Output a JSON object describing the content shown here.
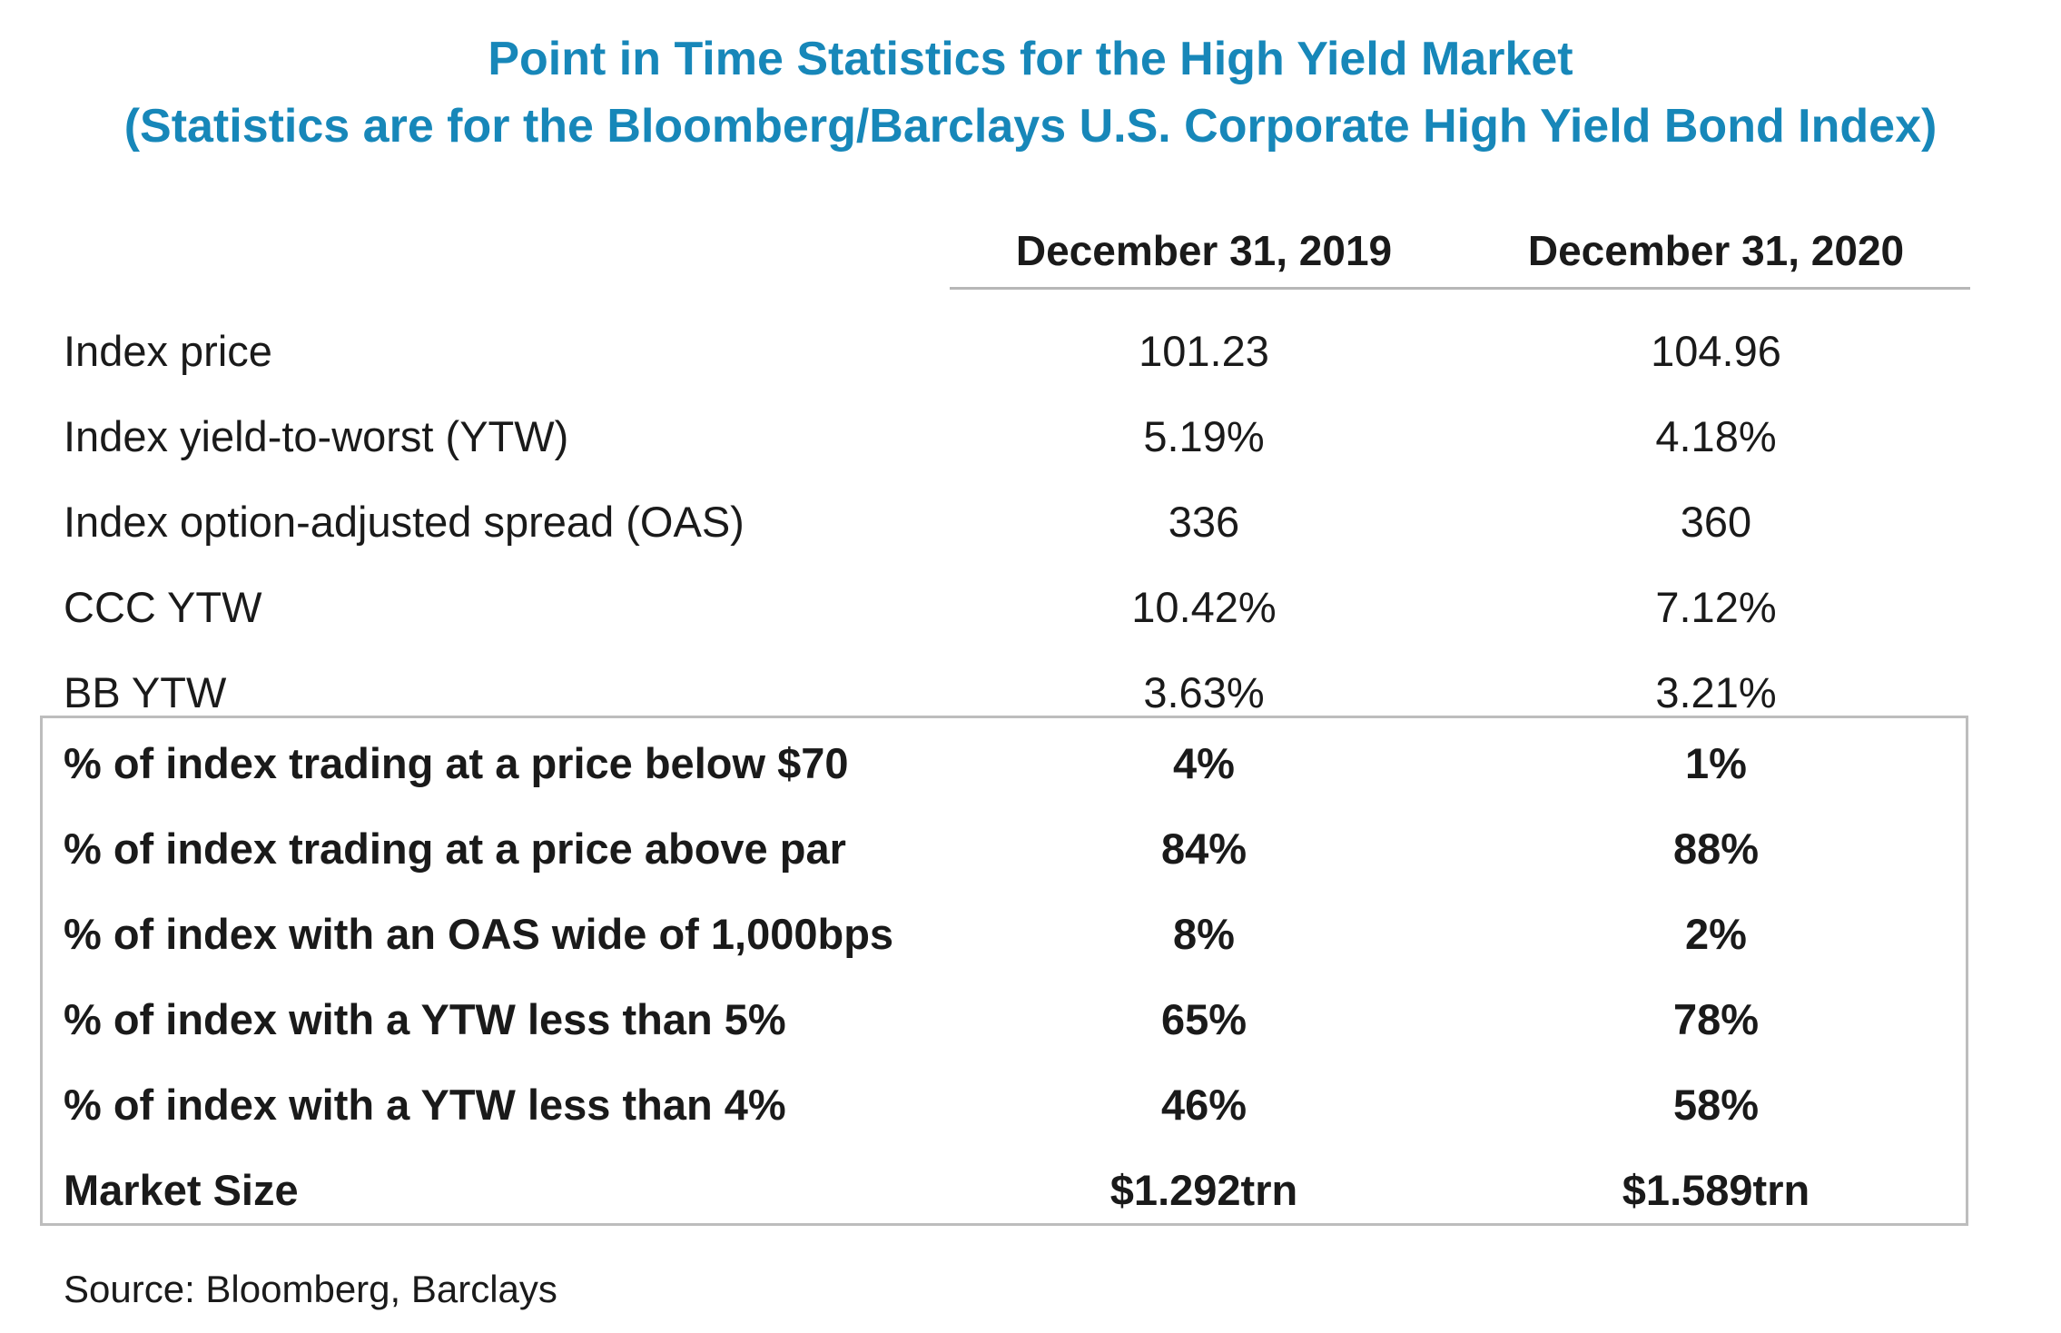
{
  "title": {
    "line1": "Point in Time Statistics for the High Yield Market",
    "line2": "(Statistics are for the Bloomberg/Barclays U.S. Corporate High Yield Bond Index)"
  },
  "columns": {
    "col1": "December 31, 2019",
    "col2": "December 31, 2020"
  },
  "rows": [
    {
      "label": "Index price",
      "v2019": "101.23",
      "v2020": "104.96"
    },
    {
      "label": "Index yield-to-worst (YTW)",
      "v2019": "5.19%",
      "v2020": "4.18%"
    },
    {
      "label": "Index option-adjusted spread (OAS)",
      "v2019": "336",
      "v2020": "360"
    },
    {
      "label": "CCC YTW",
      "v2019": "10.42%",
      "v2020": "7.12%"
    },
    {
      "label": "BB YTW",
      "v2019": "3.63%",
      "v2020": "3.21%"
    },
    {
      "label": "% of index trading at a price below $70",
      "v2019": "4%",
      "v2020": "1%"
    },
    {
      "label": "% of index trading at a price above par",
      "v2019": "84%",
      "v2020": "88%"
    },
    {
      "label": "% of index with an OAS wide of 1,000bps",
      "v2019": "8%",
      "v2020": "2%"
    },
    {
      "label": "% of index with a YTW less than 5%",
      "v2019": "65%",
      "v2020": "78%"
    },
    {
      "label": "% of index with a YTW less than 4%",
      "v2019": "46%",
      "v2020": "58%"
    },
    {
      "label": "Market Size",
      "v2019": "$1.292trn",
      "v2020": "$1.589trn"
    }
  ],
  "source": "Source: Bloomberg, Barclays",
  "colors": {
    "title": "#1787b9",
    "rule": "#b7b7b7"
  }
}
